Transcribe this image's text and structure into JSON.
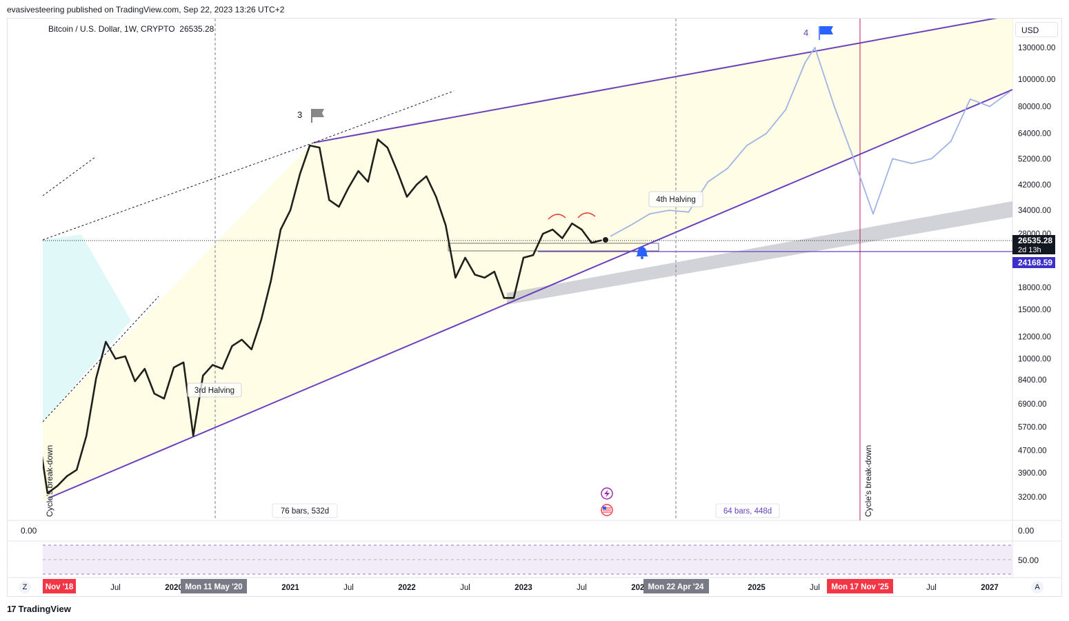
{
  "header": {
    "published_by": "evasivesteering published on TradingView.com, Sep 22, 2023 13:26 UTC+2"
  },
  "symbol": {
    "name": "Bitcoin / U.S. Dollar, 1W, CRYPTO",
    "last": "26535.28"
  },
  "currency_button": "USD",
  "footer": {
    "logo_text": "TradingView",
    "left_button": "Z",
    "right_button": "A"
  },
  "price_axis": {
    "ticks": [
      "130000.00",
      "100000.00",
      "80000.00",
      "64000.00",
      "52000.00",
      "42000.00",
      "34000.00",
      "28000.00",
      "18000.00",
      "15000.00",
      "12000.00",
      "10000.00",
      "8400.00",
      "6900.00",
      "5700.00",
      "4700.00",
      "3900.00",
      "3200.00"
    ],
    "last_price_label": "26535.28",
    "countdown_label": "2d 13h",
    "level_label": "24168.59"
  },
  "time_axis": {
    "ticks": [
      "Jul",
      "2020",
      "2021",
      "Jul",
      "2022",
      "Jul",
      "2023",
      "Jul",
      "2024",
      "2025",
      "Jul",
      "Jul",
      "2027"
    ],
    "left_marker": "Nov '18",
    "marker_1": "Mon 11 May '20",
    "marker_2": "Mon 22 Apr '24",
    "marker_3": "Mon 17 Nov '25"
  },
  "annotations": {
    "flag_3": "3",
    "flag_4": "4",
    "halving_3": "3rd Halving",
    "halving_4": "4th Halving",
    "range_1": "76 bars, 532d",
    "range_2": "64 bars, 448d",
    "cycle_breakdown_left": "Cycle's break-down",
    "cycle_breakdown_right": "Cycle's break-down"
  },
  "indicator_pane": {
    "top_value": "0.00",
    "axis_top": "0.00",
    "axis_mid": "50.00"
  },
  "colors": {
    "price_line": "#1f1f1c",
    "projection_line": "#9fb4e6",
    "channel": "#6a3fc1",
    "channel_fill": "#fffde5",
    "gray_band": "#b2b5be",
    "cyan_fill": "#d9f6f6",
    "flag_4": "#2962ff",
    "flag_3": "#888888",
    "marker_red": "#f23645",
    "marker_gray": "#787b86"
  },
  "chart_data": {
    "type": "line",
    "title": "Bitcoin / U.S. Dollar, 1W, CRYPTO",
    "scale": "log",
    "ylim": [
      2800,
      150000
    ],
    "x_range": [
      "2018-11",
      "2027-03"
    ],
    "series": [
      {
        "name": "Bitcoin / U.S. Dollar",
        "x": [
          "2018-11",
          "2018-12",
          "2019-01",
          "2019-02",
          "2019-03",
          "2019-04",
          "2019-05",
          "2019-06",
          "2019-07",
          "2019-08",
          "2019-09",
          "2019-10",
          "2019-11",
          "2019-12",
          "2020-01",
          "2020-02",
          "2020-03",
          "2020-04",
          "2020-05",
          "2020-06",
          "2020-07",
          "2020-08",
          "2020-09",
          "2020-10",
          "2020-11",
          "2020-12",
          "2021-01",
          "2021-02",
          "2021-03",
          "2021-04",
          "2021-05",
          "2021-06",
          "2021-07",
          "2021-08",
          "2021-09",
          "2021-10",
          "2021-11",
          "2021-12",
          "2022-01",
          "2022-02",
          "2022-03",
          "2022-04",
          "2022-05",
          "2022-06",
          "2022-07",
          "2022-08",
          "2022-09",
          "2022-10",
          "2022-11",
          "2022-12",
          "2023-01",
          "2023-02",
          "2023-03",
          "2023-04",
          "2023-05",
          "2023-06",
          "2023-07",
          "2023-08",
          "2023-09"
        ],
        "values": [
          5600,
          3300,
          3500,
          3800,
          4000,
          5300,
          8500,
          11500,
          10000,
          10200,
          8300,
          9200,
          7500,
          7200,
          9300,
          9700,
          5300,
          8700,
          9500,
          9200,
          11100,
          11700,
          10800,
          13800,
          19000,
          29000,
          34000,
          46000,
          58000,
          57000,
          37000,
          35000,
          41000,
          47000,
          43000,
          61000,
          57000,
          47000,
          38000,
          42000,
          45000,
          38000,
          30000,
          19500,
          23000,
          20000,
          19500,
          20500,
          16500,
          16500,
          23000,
          23500,
          28000,
          29000,
          27000,
          30500,
          29000,
          26000,
          26535
        ]
      },
      {
        "name": "Projection",
        "x": [
          "2023-10",
          "2023-12",
          "2024-02",
          "2024-04",
          "2024-06",
          "2024-08",
          "2024-10",
          "2024-12",
          "2025-02",
          "2025-04",
          "2025-06",
          "2025-07",
          "2025-09",
          "2025-11",
          "2026-01",
          "2026-03",
          "2026-05",
          "2026-07",
          "2026-09",
          "2026-11",
          "2027-01",
          "2027-03"
        ],
        "values": [
          27500,
          30000,
          33000,
          34000,
          33500,
          43000,
          48000,
          58000,
          64000,
          78000,
          115000,
          130000,
          80000,
          52000,
          33000,
          52000,
          50000,
          52000,
          60000,
          85000,
          80000,
          90000
        ]
      }
    ]
  }
}
